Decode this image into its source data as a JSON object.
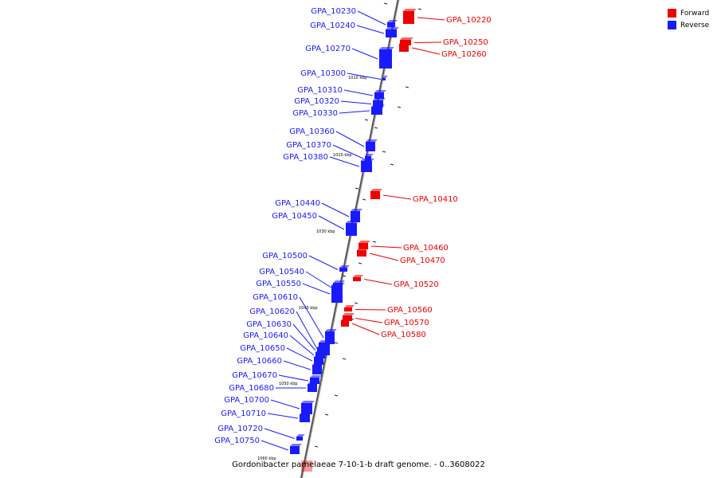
{
  "caption": "Gordonibacter pamelaeae 7-10-1-b draft genome. - 0..3608022",
  "legend": {
    "items": [
      {
        "label": "Forward",
        "color": "#ee0000"
      },
      {
        "label": "Reverse",
        "color": "#1a1aff"
      }
    ]
  },
  "colors": {
    "forward": "#ee0000",
    "reverse": "#1a1aff",
    "axis": "#888888"
  },
  "scale_labels": [
    "1010 kbp",
    "1020 kbp",
    "1030 kbp",
    "1040 kbp",
    "1050 kbp",
    "1060 kbp"
  ],
  "genes": {
    "reverse": [
      "GPA_10230",
      "GPA_10240",
      "GPA_10270",
      "GPA_10300",
      "GPA_10310",
      "GPA_10320",
      "GPA_10330",
      "GPA_10360",
      "GPA_10370",
      "GPA_10380",
      "GPA_10440",
      "GPA_10450",
      "GPA_10500",
      "GPA_10540",
      "GPA_10550",
      "GPA_10610",
      "GPA_10620",
      "GPA_10630",
      "GPA_10640",
      "GPA_10650",
      "GPA_10660",
      "GPA_10670",
      "GPA_10680",
      "GPA_10700",
      "GPA_10710",
      "GPA_10720",
      "GPA_10750"
    ],
    "forward": [
      "GPA_10220",
      "GPA_10250",
      "GPA_10260",
      "GPA_10410",
      "GPA_10460",
      "GPA_10470",
      "GPA_10520",
      "GPA_10560",
      "GPA_10570",
      "GPA_10580"
    ]
  }
}
